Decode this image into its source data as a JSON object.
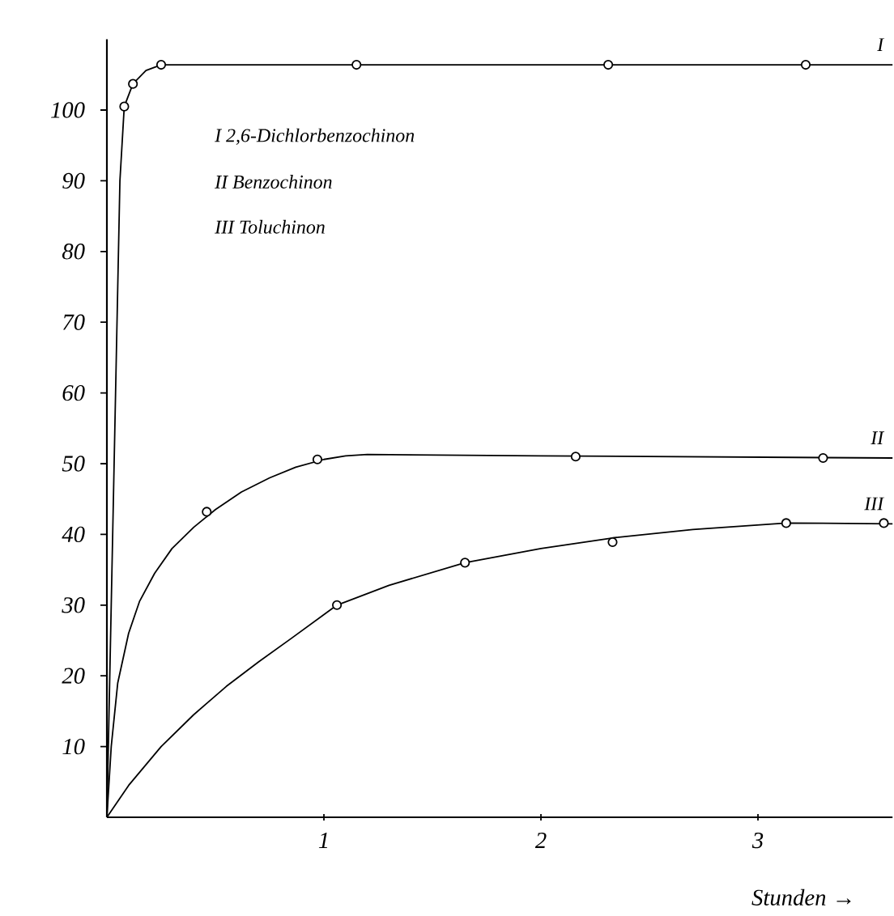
{
  "chart_data": {
    "type": "line",
    "xlabel": "Stunden →",
    "xlim": [
      0,
      3.62
    ],
    "ylim": [
      0,
      110
    ],
    "xticks": [
      1,
      2,
      3
    ],
    "yticks": [
      10,
      20,
      30,
      40,
      50,
      60,
      70,
      80,
      90,
      100
    ],
    "series": [
      {
        "marker": "none",
        "color": "#000000",
        "x": [
          0,
          0.02,
          0.04,
          0.06,
          0.08,
          0.12,
          0.18,
          0.25,
          3.62
        ],
        "values": [
          0,
          30,
          60,
          90,
          100.5,
          103.7,
          105.6,
          106.4,
          106.4
        ]
      },
      {
        "type": "scatter",
        "marker": "circle",
        "color": "#000000",
        "x": [
          0.08,
          0.12,
          0.25,
          1.15,
          2.31,
          3.22
        ],
        "values": [
          100.5,
          103.7,
          106.4,
          106.4,
          106.4,
          106.4
        ]
      },
      {
        "marker": "none",
        "color": "#000000",
        "x": [
          0,
          0.02,
          0.05,
          0.1,
          0.15,
          0.22,
          0.3,
          0.4,
          0.5,
          0.62,
          0.75,
          0.87,
          1.0,
          1.1,
          1.2,
          2.0,
          3.62
        ],
        "values": [
          0,
          10,
          19,
          26,
          30.5,
          34.5,
          38,
          41,
          43.5,
          46,
          48,
          49.5,
          50.6,
          51.1,
          51.3,
          51.1,
          50.8
        ]
      },
      {
        "type": "scatter",
        "marker": "circle",
        "color": "#000000",
        "x": [
          0.46,
          0.97,
          2.16,
          3.3
        ],
        "values": [
          43.2,
          50.6,
          51,
          50.8
        ]
      },
      {
        "marker": "none",
        "color": "#000000",
        "x": [
          0,
          0.1,
          0.25,
          0.4,
          0.55,
          0.7,
          0.85,
          1.06,
          1.3,
          1.65,
          2.0,
          2.33,
          2.7,
          3.13,
          3.62
        ],
        "values": [
          0,
          4.5,
          10,
          14.5,
          18.5,
          22,
          25.3,
          30,
          32.8,
          36,
          38,
          39.5,
          40.7,
          41.6,
          41.5
        ]
      },
      {
        "type": "scatter",
        "marker": "circle",
        "color": "#000000",
        "x": [
          1.06,
          1.65,
          2.33,
          3.13,
          3.58
        ],
        "values": [
          30,
          36,
          38.9,
          41.6,
          41.6
        ]
      }
    ],
    "annotations": [
      "I 2,6-Dichlorbenzochinon",
      "II Benzochinon",
      "III Toluchinon",
      "I",
      "II",
      "III"
    ]
  }
}
